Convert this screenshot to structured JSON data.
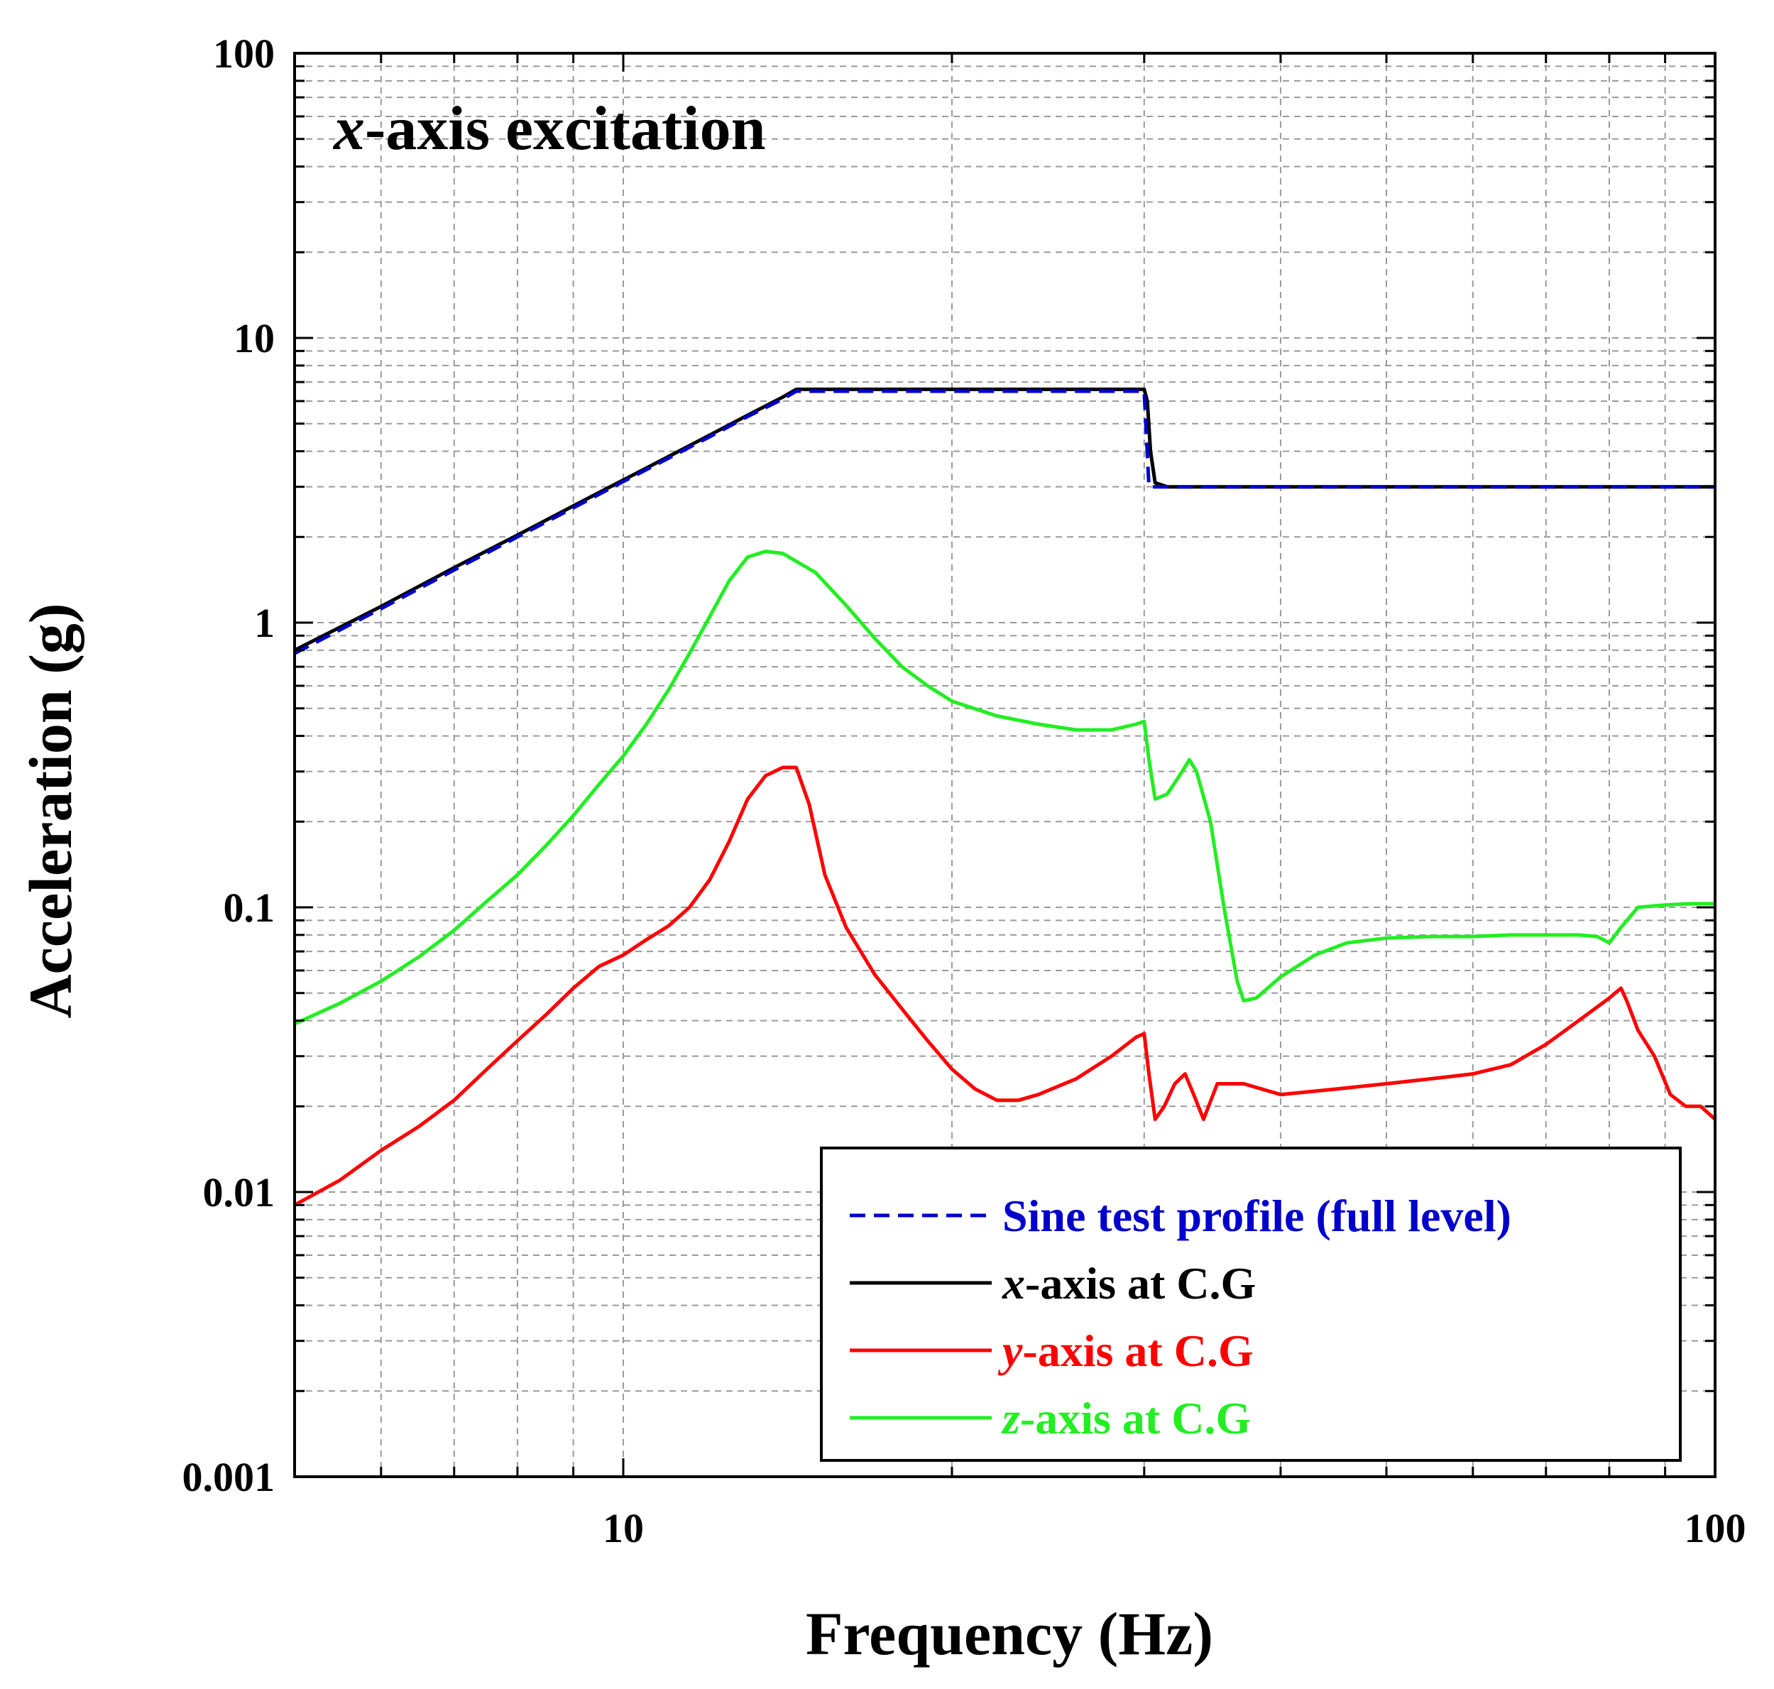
{
  "chart_data": {
    "type": "line",
    "title": "x-axis excitation",
    "title_italic_part": "x",
    "title_rest": "-axis excitation",
    "xlabel": "Frequency (Hz)",
    "ylabel": "Acceleration (g)",
    "xscale": "log",
    "yscale": "log",
    "xlim": [
      5,
      100
    ],
    "ylim": [
      0.001,
      100
    ],
    "grid": true,
    "x_tick_labels": [
      {
        "value": 10,
        "label": "10"
      },
      {
        "value": 100,
        "label": "100"
      }
    ],
    "y_tick_labels": [
      {
        "value": 0.001,
        "label": "0.001"
      },
      {
        "value": 0.01,
        "label": "0.01"
      },
      {
        "value": 0.1,
        "label": "0.1"
      },
      {
        "value": 1,
        "label": "1"
      },
      {
        "value": 10,
        "label": "10"
      },
      {
        "value": 100,
        "label": "100"
      }
    ],
    "legend_position": "bottom-right",
    "series": [
      {
        "name": "Sine test profile (full level)",
        "legend_italic": "",
        "legend_rest": "Sine test profile (full level)",
        "color": "#0000cc",
        "dash": true,
        "points": [
          [
            5,
            0.78
          ],
          [
            6,
            1.12
          ],
          [
            7,
            1.53
          ],
          [
            8,
            2.0
          ],
          [
            9,
            2.53
          ],
          [
            10,
            3.13
          ],
          [
            11,
            3.78
          ],
          [
            12,
            4.5
          ],
          [
            13,
            5.3
          ],
          [
            14,
            6.1
          ],
          [
            14.4,
            6.5
          ],
          [
            30,
            6.5
          ],
          [
            30.3,
            3.0
          ],
          [
            100,
            3.0
          ]
        ]
      },
      {
        "name": "x-axis at C.G",
        "legend_italic": "x",
        "legend_rest": "-axis at C.G",
        "color": "#000000",
        "dash": false,
        "points": [
          [
            5,
            0.8
          ],
          [
            6,
            1.14
          ],
          [
            7,
            1.56
          ],
          [
            8,
            2.03
          ],
          [
            9,
            2.57
          ],
          [
            10,
            3.17
          ],
          [
            11,
            3.83
          ],
          [
            12,
            4.56
          ],
          [
            13,
            5.35
          ],
          [
            14,
            6.2
          ],
          [
            14.4,
            6.6
          ],
          [
            20,
            6.6
          ],
          [
            25,
            6.6
          ],
          [
            30,
            6.6
          ],
          [
            30.2,
            6.0
          ],
          [
            30.4,
            4.0
          ],
          [
            30.7,
            3.1
          ],
          [
            31.5,
            3.0
          ],
          [
            40,
            3.0
          ],
          [
            60,
            3.0
          ],
          [
            100,
            3.0
          ]
        ]
      },
      {
        "name": "y-axis at C.G",
        "legend_italic": "y",
        "legend_rest": "-axis at C.G",
        "color": "#ff0000",
        "dash": false,
        "points": [
          [
            5,
            0.009
          ],
          [
            5.5,
            0.011
          ],
          [
            6,
            0.014
          ],
          [
            6.5,
            0.017
          ],
          [
            7,
            0.021
          ],
          [
            7.5,
            0.027
          ],
          [
            8,
            0.034
          ],
          [
            8.5,
            0.042
          ],
          [
            9,
            0.052
          ],
          [
            9.5,
            0.062
          ],
          [
            10,
            0.068
          ],
          [
            10.5,
            0.077
          ],
          [
            11,
            0.086
          ],
          [
            11.5,
            0.1
          ],
          [
            12,
            0.125
          ],
          [
            12.5,
            0.17
          ],
          [
            13,
            0.24
          ],
          [
            13.5,
            0.29
          ],
          [
            14,
            0.31
          ],
          [
            14.4,
            0.31
          ],
          [
            14.8,
            0.23
          ],
          [
            15.3,
            0.13
          ],
          [
            16,
            0.085
          ],
          [
            17,
            0.058
          ],
          [
            18,
            0.044
          ],
          [
            19,
            0.034
          ],
          [
            20,
            0.027
          ],
          [
            21,
            0.023
          ],
          [
            22,
            0.021
          ],
          [
            23,
            0.021
          ],
          [
            24,
            0.022
          ],
          [
            26,
            0.025
          ],
          [
            28,
            0.03
          ],
          [
            29.5,
            0.035
          ],
          [
            30,
            0.036
          ],
          [
            30.3,
            0.026
          ],
          [
            30.7,
            0.018
          ],
          [
            31.3,
            0.02
          ],
          [
            32,
            0.024
          ],
          [
            32.7,
            0.026
          ],
          [
            33.3,
            0.022
          ],
          [
            34,
            0.018
          ],
          [
            35,
            0.024
          ],
          [
            37,
            0.024
          ],
          [
            40,
            0.022
          ],
          [
            45,
            0.023
          ],
          [
            50,
            0.024
          ],
          [
            55,
            0.025
          ],
          [
            60,
            0.026
          ],
          [
            65,
            0.028
          ],
          [
            70,
            0.033
          ],
          [
            75,
            0.04
          ],
          [
            80,
            0.048
          ],
          [
            82,
            0.052
          ],
          [
            83,
            0.047
          ],
          [
            85,
            0.037
          ],
          [
            88,
            0.03
          ],
          [
            91,
            0.022
          ],
          [
            94,
            0.02
          ],
          [
            97,
            0.02
          ],
          [
            100,
            0.018
          ]
        ]
      },
      {
        "name": "z-axis at C.G",
        "legend_italic": "z",
        "legend_rest": "-axis at C.G",
        "color": "#22ee22",
        "dash": false,
        "points": [
          [
            5,
            0.039
          ],
          [
            5.5,
            0.046
          ],
          [
            6,
            0.055
          ],
          [
            6.5,
            0.067
          ],
          [
            7,
            0.083
          ],
          [
            7.5,
            0.105
          ],
          [
            8,
            0.13
          ],
          [
            8.5,
            0.165
          ],
          [
            9,
            0.21
          ],
          [
            9.5,
            0.27
          ],
          [
            10,
            0.34
          ],
          [
            10.5,
            0.44
          ],
          [
            11,
            0.58
          ],
          [
            11.5,
            0.78
          ],
          [
            12,
            1.05
          ],
          [
            12.5,
            1.4
          ],
          [
            13,
            1.7
          ],
          [
            13.5,
            1.78
          ],
          [
            14,
            1.75
          ],
          [
            15,
            1.5
          ],
          [
            16,
            1.15
          ],
          [
            17,
            0.88
          ],
          [
            18,
            0.7
          ],
          [
            19,
            0.6
          ],
          [
            20,
            0.53
          ],
          [
            22,
            0.47
          ],
          [
            24,
            0.44
          ],
          [
            26,
            0.42
          ],
          [
            28,
            0.42
          ],
          [
            29.5,
            0.44
          ],
          [
            30,
            0.45
          ],
          [
            30.3,
            0.33
          ],
          [
            30.7,
            0.24
          ],
          [
            31.5,
            0.25
          ],
          [
            32.5,
            0.3
          ],
          [
            33,
            0.33
          ],
          [
            33.5,
            0.3
          ],
          [
            34.5,
            0.2
          ],
          [
            35.5,
            0.1
          ],
          [
            36.5,
            0.055
          ],
          [
            37,
            0.047
          ],
          [
            38,
            0.048
          ],
          [
            40,
            0.057
          ],
          [
            43,
            0.068
          ],
          [
            46,
            0.075
          ],
          [
            50,
            0.078
          ],
          [
            55,
            0.079
          ],
          [
            60,
            0.079
          ],
          [
            65,
            0.08
          ],
          [
            70,
            0.08
          ],
          [
            75,
            0.08
          ],
          [
            78,
            0.079
          ],
          [
            80,
            0.075
          ],
          [
            82,
            0.085
          ],
          [
            85,
            0.1
          ],
          [
            90,
            0.102
          ],
          [
            95,
            0.103
          ],
          [
            100,
            0.103
          ]
        ]
      }
    ]
  }
}
